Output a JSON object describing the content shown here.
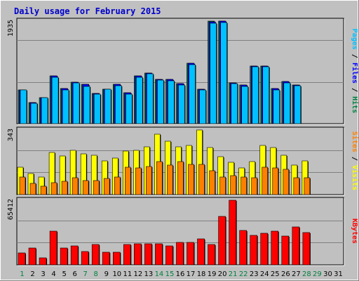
{
  "title": "Daily usage for February 2015",
  "colors": {
    "title": "#0000cc",
    "background": "#c0c0c0",
    "plot_bg": "#c0c0c0",
    "grid": "#808080",
    "hits": "#008040",
    "files": "#0000ff",
    "pages": "#00c0ff",
    "visits": "#ffff00",
    "sites": "#ff8000",
    "kbytes": "#ff0000",
    "weekend_label": "#008040",
    "weekday_label": "#000000"
  },
  "chart_data": [
    {
      "type": "bar",
      "ylabel": "Pages / Files / Hits",
      "ymax_label": "1935",
      "ylim": [
        0,
        1935
      ],
      "grid": true,
      "categories": [
        "1",
        "2",
        "3",
        "4",
        "5",
        "6",
        "7",
        "8",
        "9",
        "10",
        "11",
        "12",
        "13",
        "14",
        "15",
        "16",
        "17",
        "18",
        "19",
        "20",
        "21",
        "22",
        "23",
        "24",
        "25",
        "26",
        "27",
        "28",
        "29",
        "30",
        "31"
      ],
      "series": [
        {
          "name": "Hits",
          "values": [
            630,
            395,
            485,
            903,
            660,
            780,
            748,
            572,
            645,
            738,
            578,
            900,
            960,
            840,
            835,
            750,
            1140,
            650,
            1935,
            1935,
            775,
            730,
            1090,
            1090,
            660,
            793,
            733,
            null,
            null,
            null,
            null
          ]
        },
        {
          "name": "Files",
          "values": [
            630,
            395,
            485,
            903,
            660,
            780,
            748,
            572,
            645,
            738,
            578,
            900,
            960,
            840,
            835,
            750,
            1140,
            650,
            1920,
            1935,
            775,
            730,
            1090,
            1090,
            660,
            793,
            733,
            null,
            null,
            null,
            null
          ]
        },
        {
          "name": "Pages",
          "values": [
            630,
            385,
            485,
            875,
            640,
            765,
            705,
            558,
            645,
            710,
            558,
            880,
            940,
            820,
            815,
            728,
            1110,
            630,
            1900,
            1910,
            755,
            700,
            1070,
            1070,
            640,
            770,
            710,
            null,
            null,
            null,
            null
          ]
        }
      ]
    },
    {
      "type": "bar",
      "ylabel": "Sites / Visits",
      "ymax_label": "343",
      "ylim": [
        0,
        343
      ],
      "grid": true,
      "categories": [
        "1",
        "2",
        "3",
        "4",
        "5",
        "6",
        "7",
        "8",
        "9",
        "10",
        "11",
        "12",
        "13",
        "14",
        "15",
        "16",
        "17",
        "18",
        "19",
        "20",
        "21",
        "22",
        "23",
        "24",
        "25",
        "26",
        "27",
        "28",
        "29",
        "30",
        "31"
      ],
      "series": [
        {
          "name": "Visits",
          "values": [
            145,
            110,
            95,
            225,
            205,
            235,
            215,
            210,
            180,
            195,
            230,
            235,
            255,
            322,
            285,
            255,
            260,
            343,
            250,
            200,
            170,
            140,
            175,
            260,
            250,
            210,
            155,
            180,
            null,
            null,
            null
          ]
        },
        {
          "name": "Sites",
          "values": [
            95,
            60,
            45,
            65,
            70,
            90,
            75,
            75,
            85,
            95,
            145,
            140,
            150,
            175,
            155,
            175,
            160,
            160,
            125,
            95,
            100,
            95,
            90,
            145,
            140,
            135,
            90,
            90,
            null,
            null,
            null
          ]
        }
      ]
    },
    {
      "type": "bar",
      "ylabel": "KBytes",
      "ymax_label": "65412",
      "ylim": [
        0,
        65412
      ],
      "grid": true,
      "categories": [
        "1",
        "2",
        "3",
        "4",
        "5",
        "6",
        "7",
        "8",
        "9",
        "10",
        "11",
        "12",
        "13",
        "14",
        "15",
        "16",
        "17",
        "18",
        "19",
        "20",
        "21",
        "22",
        "23",
        "24",
        "25",
        "26",
        "27",
        "28",
        "29",
        "30",
        "31"
      ],
      "series": [
        {
          "name": "KBytes",
          "values": [
            12000,
            17000,
            7000,
            34000,
            17000,
            19500,
            13500,
            20500,
            12500,
            13000,
            20500,
            21000,
            21500,
            21500,
            19000,
            23000,
            23000,
            26500,
            20500,
            49000,
            65412,
            35000,
            30000,
            32000,
            34000,
            29000,
            38500,
            32500,
            null,
            null,
            null
          ]
        }
      ]
    }
  ],
  "x_labels": {
    "days": [
      "1",
      "2",
      "3",
      "4",
      "5",
      "6",
      "7",
      "8",
      "9",
      "10",
      "11",
      "12",
      "13",
      "14",
      "15",
      "16",
      "17",
      "18",
      "19",
      "20",
      "21",
      "22",
      "23",
      "24",
      "25",
      "26",
      "27",
      "28",
      "29",
      "30",
      "31"
    ],
    "weekend_days": [
      "1",
      "7",
      "8",
      "14",
      "15",
      "21",
      "22",
      "28",
      "29"
    ]
  }
}
